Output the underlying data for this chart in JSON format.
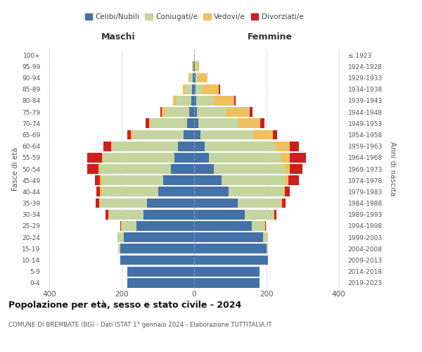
{
  "age_groups": [
    "0-4",
    "5-9",
    "10-14",
    "15-19",
    "20-24",
    "25-29",
    "30-34",
    "35-39",
    "40-44",
    "45-49",
    "50-54",
    "55-59",
    "60-64",
    "65-69",
    "70-74",
    "75-79",
    "80-84",
    "85-89",
    "90-94",
    "95-99",
    "100+"
  ],
  "birth_years": [
    "2019-2023",
    "2014-2018",
    "2009-2013",
    "2004-2008",
    "1999-2003",
    "1994-1998",
    "1989-1993",
    "1984-1988",
    "1979-1983",
    "1974-1978",
    "1969-1973",
    "1964-1968",
    "1959-1963",
    "1954-1958",
    "1949-1953",
    "1944-1948",
    "1939-1943",
    "1934-1938",
    "1929-1933",
    "1924-1928",
    "≤ 1923"
  ],
  "colors": {
    "celibi": "#4472a8",
    "coniugati": "#c5d5a0",
    "vedovi": "#f0c060",
    "divorziati": "#cc2020"
  },
  "maschi": {
    "celibi": [
      185,
      185,
      205,
      205,
      195,
      160,
      140,
      130,
      100,
      85,
      65,
      55,
      45,
      30,
      20,
      14,
      8,
      5,
      4,
      2,
      0
    ],
    "coniugati": [
      0,
      0,
      0,
      5,
      15,
      40,
      95,
      130,
      155,
      170,
      195,
      195,
      180,
      140,
      100,
      65,
      40,
      18,
      8,
      2,
      0
    ],
    "vedovi": [
      0,
      0,
      0,
      0,
      2,
      2,
      2,
      3,
      5,
      5,
      5,
      5,
      5,
      5,
      5,
      10,
      10,
      8,
      3,
      2,
      0
    ],
    "divorziati": [
      0,
      0,
      0,
      0,
      0,
      3,
      8,
      10,
      10,
      15,
      30,
      40,
      20,
      10,
      10,
      5,
      0,
      0,
      0,
      0,
      0
    ]
  },
  "femmine": {
    "celibi": [
      180,
      180,
      205,
      200,
      190,
      160,
      140,
      120,
      95,
      75,
      55,
      40,
      30,
      18,
      12,
      8,
      5,
      4,
      3,
      2,
      0
    ],
    "coniugati": [
      0,
      0,
      0,
      5,
      15,
      35,
      80,
      120,
      150,
      175,
      195,
      200,
      195,
      145,
      110,
      80,
      50,
      20,
      8,
      3,
      0
    ],
    "vedovi": [
      0,
      0,
      0,
      0,
      0,
      2,
      2,
      3,
      5,
      10,
      15,
      25,
      40,
      55,
      60,
      65,
      55,
      45,
      25,
      8,
      0
    ],
    "divorziati": [
      0,
      0,
      0,
      0,
      0,
      2,
      5,
      10,
      15,
      30,
      35,
      45,
      25,
      12,
      12,
      8,
      5,
      2,
      0,
      0,
      0
    ]
  },
  "title": "Popolazione per età, sesso e stato civile - 2024",
  "subtitle": "COMUNE DI BREMBATE (BG) - Dati ISTAT 1° gennaio 2024 - Elaborazione TUTTITALIA.IT",
  "xlabel_maschi": "Maschi",
  "xlabel_femmine": "Femmine",
  "ylabel": "Fasce di età",
  "ylabel_right": "Anni di nascita",
  "xlim": 420,
  "legend_labels": [
    "Celibi/Nubili",
    "Coniugati/e",
    "Vedovi/e",
    "Divorziati/e"
  ]
}
